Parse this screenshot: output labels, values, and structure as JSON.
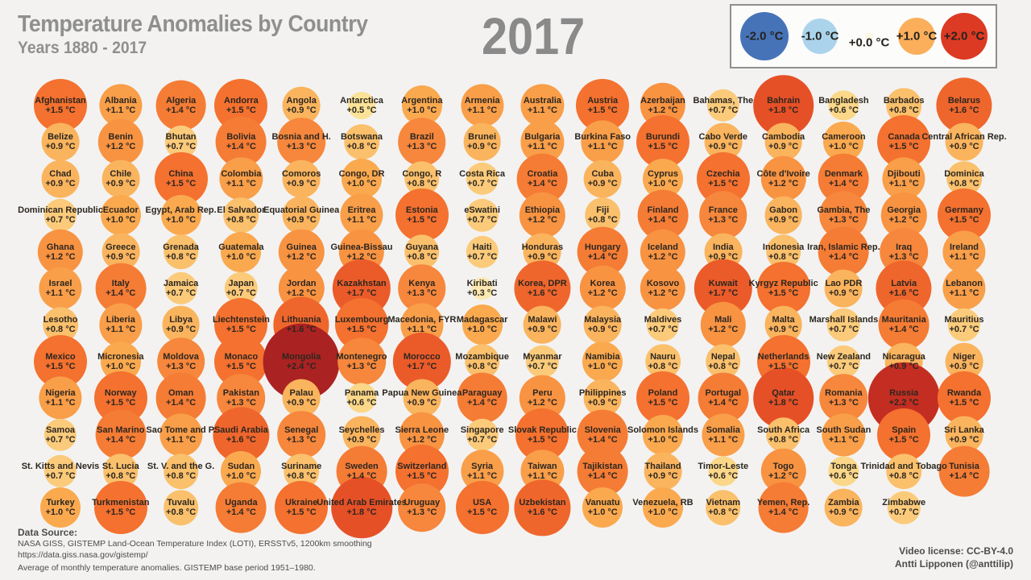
{
  "header": {
    "title": "Temperature Anomalies by Country",
    "subtitle": "Years 1880 - 2017",
    "year": "2017"
  },
  "legend": {
    "items": [
      {
        "label": "-2.0 °C",
        "value": -2.0,
        "color": "#4673b8",
        "size": 60
      },
      {
        "label": "-1.0 °C",
        "value": -1.0,
        "color": "#abd4ec",
        "size": 44
      },
      {
        "label": "+0.0 °C",
        "value": 0.0,
        "color": "#fdf8e4",
        "size": 10
      },
      {
        "label": "+1.0 °C",
        "value": 1.0,
        "color": "#fbaf5a",
        "size": 46
      },
      {
        "label": "+2.0 °C",
        "value": 2.0,
        "color": "#dc3a23",
        "size": 58
      }
    ]
  },
  "footer": {
    "source_label": "Data Source:",
    "source_line1": "NASA GISS, GISTEMP Land-Ocean Temperature Index (LOTI), ERSSTv5, 1200km smoothing",
    "source_line2": "https://data.giss.nasa.gov/gistemp/",
    "source_line3": "Average of monthly temperature anomalies. GISTEMP base period 1951–1980.",
    "license": "Video license: CC-BY-4.0",
    "author": "Antti Lipponen (@anttilip)"
  },
  "chart_data": {
    "type": "heatmap",
    "title": "Temperature Anomalies by Country",
    "subtitle": "Years 1880 - 2017",
    "year": "2017",
    "unit": "°C",
    "layout_hint": "alphabetical bubble grid, 16 columns x 12 rows; bubble size and color encode anomaly magnitude",
    "grid_columns": 16,
    "value_format": "+#.# °C",
    "color_scale": [
      {
        "value": 0.0,
        "color": "#fdf2d4"
      },
      {
        "value": 0.5,
        "color": "#fbe298"
      },
      {
        "value": 1.0,
        "color": "#faa94f"
      },
      {
        "value": 1.5,
        "color": "#f4712f"
      },
      {
        "value": 2.0,
        "color": "#dd3a22"
      },
      {
        "value": 2.5,
        "color": "#9f1c22"
      }
    ],
    "countries": [
      {
        "name": "Afghanistan",
        "anomaly": 1.5
      },
      {
        "name": "Albania",
        "anomaly": 1.1
      },
      {
        "name": "Algeria",
        "anomaly": 1.4
      },
      {
        "name": "Andorra",
        "anomaly": 1.5
      },
      {
        "name": "Angola",
        "anomaly": 0.9
      },
      {
        "name": "Antarctica",
        "anomaly": 0.5
      },
      {
        "name": "Argentina",
        "anomaly": 1.0
      },
      {
        "name": "Armenia",
        "anomaly": 1.1
      },
      {
        "name": "Australia",
        "anomaly": 1.1
      },
      {
        "name": "Austria",
        "anomaly": 1.5
      },
      {
        "name": "Azerbaijan",
        "anomaly": 1.2
      },
      {
        "name": "Bahamas, The",
        "anomaly": 0.7
      },
      {
        "name": "Bahrain",
        "anomaly": 1.8
      },
      {
        "name": "Bangladesh",
        "anomaly": 0.6
      },
      {
        "name": "Barbados",
        "anomaly": 0.8
      },
      {
        "name": "Belarus",
        "anomaly": 1.6
      },
      {
        "name": "Belize",
        "anomaly": 0.9
      },
      {
        "name": "Benin",
        "anomaly": 1.2
      },
      {
        "name": "Bhutan",
        "anomaly": 0.7
      },
      {
        "name": "Bolivia",
        "anomaly": 1.4
      },
      {
        "name": "Bosnia and H.",
        "anomaly": 1.3
      },
      {
        "name": "Botswana",
        "anomaly": 0.8
      },
      {
        "name": "Brazil",
        "anomaly": 1.3
      },
      {
        "name": "Brunei",
        "anomaly": 0.9
      },
      {
        "name": "Bulgaria",
        "anomaly": 1.1
      },
      {
        "name": "Burkina Faso",
        "anomaly": 1.1
      },
      {
        "name": "Burundi",
        "anomaly": 1.5
      },
      {
        "name": "Cabo Verde",
        "anomaly": 0.9
      },
      {
        "name": "Cambodia",
        "anomaly": 0.9
      },
      {
        "name": "Cameroon",
        "anomaly": 1.0
      },
      {
        "name": "Canada",
        "anomaly": 1.5
      },
      {
        "name": "Central African Rep.",
        "anomaly": 0.9
      },
      {
        "name": "Chad",
        "anomaly": 0.9
      },
      {
        "name": "Chile",
        "anomaly": 0.9
      },
      {
        "name": "China",
        "anomaly": 1.5
      },
      {
        "name": "Colombia",
        "anomaly": 1.1
      },
      {
        "name": "Comoros",
        "anomaly": 0.9
      },
      {
        "name": "Congo, DR",
        "anomaly": 1.0
      },
      {
        "name": "Congo, R",
        "anomaly": 0.8
      },
      {
        "name": "Costa Rica",
        "anomaly": 0.7
      },
      {
        "name": "Croatia",
        "anomaly": 1.4
      },
      {
        "name": "Cuba",
        "anomaly": 0.9
      },
      {
        "name": "Cyprus",
        "anomaly": 1.0
      },
      {
        "name": "Czechia",
        "anomaly": 1.5
      },
      {
        "name": "Côte d'Ivoire",
        "anomaly": 1.2
      },
      {
        "name": "Denmark",
        "anomaly": 1.4
      },
      {
        "name": "Djibouti",
        "anomaly": 1.1
      },
      {
        "name": "Dominica",
        "anomaly": 0.8
      },
      {
        "name": "Dominican Republic",
        "anomaly": 0.7
      },
      {
        "name": "Ecuador",
        "anomaly": 1.0
      },
      {
        "name": "Egypt, Arab Rep.",
        "anomaly": 1.0
      },
      {
        "name": "El Salvador",
        "anomaly": 0.8
      },
      {
        "name": "Equatorial Guinea",
        "anomaly": 0.9
      },
      {
        "name": "Eritrea",
        "anomaly": 1.1
      },
      {
        "name": "Estonia",
        "anomaly": 1.5
      },
      {
        "name": "eSwatini",
        "anomaly": 0.7
      },
      {
        "name": "Ethiopia",
        "anomaly": 1.2
      },
      {
        "name": "Fiji",
        "anomaly": 0.8
      },
      {
        "name": "Finland",
        "anomaly": 1.4
      },
      {
        "name": "France",
        "anomaly": 1.3
      },
      {
        "name": "Gabon",
        "anomaly": 0.9
      },
      {
        "name": "Gambia, The",
        "anomaly": 1.3
      },
      {
        "name": "Georgia",
        "anomaly": 1.2
      },
      {
        "name": "Germany",
        "anomaly": 1.5
      },
      {
        "name": "Ghana",
        "anomaly": 1.2
      },
      {
        "name": "Greece",
        "anomaly": 0.9
      },
      {
        "name": "Grenada",
        "anomaly": 0.8
      },
      {
        "name": "Guatemala",
        "anomaly": 1.0
      },
      {
        "name": "Guinea",
        "anomaly": 1.2
      },
      {
        "name": "Guinea-Bissau",
        "anomaly": 1.2
      },
      {
        "name": "Guyana",
        "anomaly": 0.8
      },
      {
        "name": "Haiti",
        "anomaly": 0.7
      },
      {
        "name": "Honduras",
        "anomaly": 0.9
      },
      {
        "name": "Hungary",
        "anomaly": 1.4
      },
      {
        "name": "Iceland",
        "anomaly": 1.2
      },
      {
        "name": "India",
        "anomaly": 0.9
      },
      {
        "name": "Indonesia",
        "anomaly": 0.8
      },
      {
        "name": "Iran, Islamic Rep.",
        "anomaly": 1.4
      },
      {
        "name": "Iraq",
        "anomaly": 1.3
      },
      {
        "name": "Ireland",
        "anomaly": 1.1
      },
      {
        "name": "Israel",
        "anomaly": 1.1
      },
      {
        "name": "Italy",
        "anomaly": 1.4
      },
      {
        "name": "Jamaica",
        "anomaly": 0.7
      },
      {
        "name": "Japan",
        "anomaly": 0.7
      },
      {
        "name": "Jordan",
        "anomaly": 1.2
      },
      {
        "name": "Kazakhstan",
        "anomaly": 1.7
      },
      {
        "name": "Kenya",
        "anomaly": 1.3
      },
      {
        "name": "Kiribati",
        "anomaly": 0.3
      },
      {
        "name": "Korea, DPR",
        "anomaly": 1.6
      },
      {
        "name": "Korea",
        "anomaly": 1.2
      },
      {
        "name": "Kosovo",
        "anomaly": 1.2
      },
      {
        "name": "Kuwait",
        "anomaly": 1.7
      },
      {
        "name": "Kyrgyz Republic",
        "anomaly": 1.5
      },
      {
        "name": "Lao PDR",
        "anomaly": 0.9
      },
      {
        "name": "Latvia",
        "anomaly": 1.6
      },
      {
        "name": "Lebanon",
        "anomaly": 1.1
      },
      {
        "name": "Lesotho",
        "anomaly": 0.8
      },
      {
        "name": "Liberia",
        "anomaly": 1.1
      },
      {
        "name": "Libya",
        "anomaly": 0.9
      },
      {
        "name": "Liechtenstein",
        "anomaly": 1.5
      },
      {
        "name": "Lithuania",
        "anomaly": 1.6
      },
      {
        "name": "Luxembourg",
        "anomaly": 1.5
      },
      {
        "name": "Macedonia, FYR",
        "anomaly": 1.1
      },
      {
        "name": "Madagascar",
        "anomaly": 1.0
      },
      {
        "name": "Malawi",
        "anomaly": 0.9
      },
      {
        "name": "Malaysia",
        "anomaly": 0.9
      },
      {
        "name": "Maldives",
        "anomaly": 0.7
      },
      {
        "name": "Mali",
        "anomaly": 1.2
      },
      {
        "name": "Malta",
        "anomaly": 0.9
      },
      {
        "name": "Marshall Islands",
        "anomaly": 0.7
      },
      {
        "name": "Mauritania",
        "anomaly": 1.4
      },
      {
        "name": "Mauritius",
        "anomaly": 0.7
      },
      {
        "name": "Mexico",
        "anomaly": 1.5
      },
      {
        "name": "Micronesia",
        "anomaly": 1.0
      },
      {
        "name": "Moldova",
        "anomaly": 1.3
      },
      {
        "name": "Monaco",
        "anomaly": 1.5
      },
      {
        "name": "Mongolia",
        "anomaly": 2.4
      },
      {
        "name": "Montenegro",
        "anomaly": 1.3
      },
      {
        "name": "Morocco",
        "anomaly": 1.7
      },
      {
        "name": "Mozambique",
        "anomaly": 0.8
      },
      {
        "name": "Myanmar",
        "anomaly": 0.7
      },
      {
        "name": "Namibia",
        "anomaly": 1.0
      },
      {
        "name": "Nauru",
        "anomaly": 0.8
      },
      {
        "name": "Nepal",
        "anomaly": 0.8
      },
      {
        "name": "Netherlands",
        "anomaly": 1.5
      },
      {
        "name": "New Zealand",
        "anomaly": 0.7
      },
      {
        "name": "Nicaragua",
        "anomaly": 0.9
      },
      {
        "name": "Niger",
        "anomaly": 0.9
      },
      {
        "name": "Nigeria",
        "anomaly": 1.1
      },
      {
        "name": "Norway",
        "anomaly": 1.5
      },
      {
        "name": "Oman",
        "anomaly": 1.4
      },
      {
        "name": "Pakistan",
        "anomaly": 1.3
      },
      {
        "name": "Palau",
        "anomaly": 0.9
      },
      {
        "name": "Panama",
        "anomaly": 0.6
      },
      {
        "name": "Papua New Guinea",
        "anomaly": 0.9
      },
      {
        "name": "Paraguay",
        "anomaly": 1.4
      },
      {
        "name": "Peru",
        "anomaly": 1.2
      },
      {
        "name": "Philippines",
        "anomaly": 0.9
      },
      {
        "name": "Poland",
        "anomaly": 1.5
      },
      {
        "name": "Portugal",
        "anomaly": 1.4
      },
      {
        "name": "Qatar",
        "anomaly": 1.8
      },
      {
        "name": "Romania",
        "anomaly": 1.3
      },
      {
        "name": "Russia",
        "anomaly": 2.2
      },
      {
        "name": "Rwanda",
        "anomaly": 1.5
      },
      {
        "name": "Samoa",
        "anomaly": 0.7
      },
      {
        "name": "San Marino",
        "anomaly": 1.4
      },
      {
        "name": "Sao Tome and P.",
        "anomaly": 1.1
      },
      {
        "name": "Saudi Arabia",
        "anomaly": 1.6
      },
      {
        "name": "Senegal",
        "anomaly": 1.3
      },
      {
        "name": "Seychelles",
        "anomaly": 0.9
      },
      {
        "name": "Sierra Leone",
        "anomaly": 1.2
      },
      {
        "name": "Singapore",
        "anomaly": 0.7
      },
      {
        "name": "Slovak Republic",
        "anomaly": 1.5
      },
      {
        "name": "Slovenia",
        "anomaly": 1.4
      },
      {
        "name": "Solomon Islands",
        "anomaly": 1.0
      },
      {
        "name": "Somalia",
        "anomaly": 1.1
      },
      {
        "name": "South Africa",
        "anomaly": 0.8
      },
      {
        "name": "South Sudan",
        "anomaly": 1.1
      },
      {
        "name": "Spain",
        "anomaly": 1.5
      },
      {
        "name": "Sri Lanka",
        "anomaly": 0.9
      },
      {
        "name": "St. Kitts and Nevis",
        "anomaly": 0.7
      },
      {
        "name": "St. Lucia",
        "anomaly": 0.8
      },
      {
        "name": "St. V. and the G.",
        "anomaly": 0.8
      },
      {
        "name": "Sudan",
        "anomaly": 1.0
      },
      {
        "name": "Suriname",
        "anomaly": 0.8
      },
      {
        "name": "Sweden",
        "anomaly": 1.4
      },
      {
        "name": "Switzerland",
        "anomaly": 1.5
      },
      {
        "name": "Syria",
        "anomaly": 1.1
      },
      {
        "name": "Taiwan",
        "anomaly": 1.1
      },
      {
        "name": "Tajikistan",
        "anomaly": 1.4
      },
      {
        "name": "Thailand",
        "anomaly": 0.9
      },
      {
        "name": "Timor-Leste",
        "anomaly": 0.6
      },
      {
        "name": "Togo",
        "anomaly": 1.2
      },
      {
        "name": "Tonga",
        "anomaly": 0.6
      },
      {
        "name": "Trinidad and Tobago",
        "anomaly": 0.8
      },
      {
        "name": "Tunisia",
        "anomaly": 1.4
      },
      {
        "name": "Turkey",
        "anomaly": 1.0
      },
      {
        "name": "Turkmenistan",
        "anomaly": 1.5
      },
      {
        "name": "Tuvalu",
        "anomaly": 0.8
      },
      {
        "name": "Uganda",
        "anomaly": 1.4
      },
      {
        "name": "Ukraine",
        "anomaly": 1.5
      },
      {
        "name": "United Arab Emirates",
        "anomaly": 1.8
      },
      {
        "name": "Uruguay",
        "anomaly": 1.3
      },
      {
        "name": "USA",
        "anomaly": 1.5
      },
      {
        "name": "Uzbekistan",
        "anomaly": 1.6
      },
      {
        "name": "Vanuatu",
        "anomaly": 1.0
      },
      {
        "name": "Venezuela, RB",
        "anomaly": 1.0
      },
      {
        "name": "Vietnam",
        "anomaly": 0.8
      },
      {
        "name": "Yemen, Rep.",
        "anomaly": 1.4
      },
      {
        "name": "Zambia",
        "anomaly": 0.9
      },
      {
        "name": "Zimbabwe",
        "anomaly": 0.7
      }
    ]
  }
}
